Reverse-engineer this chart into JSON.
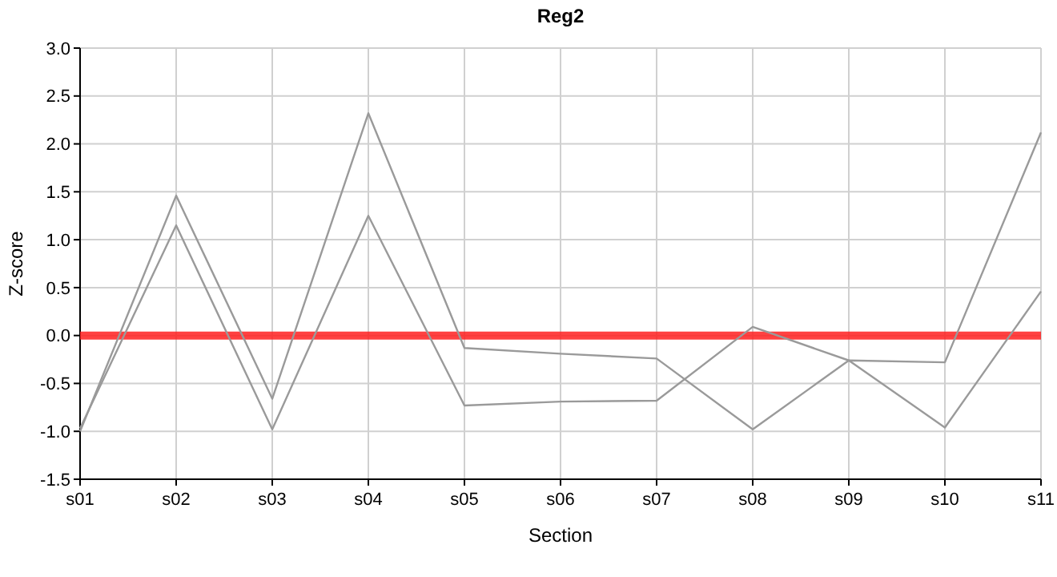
{
  "chart_data": {
    "type": "line",
    "title": "Reg2",
    "xlabel": "Section",
    "ylabel": "Z-score",
    "categories": [
      "s01",
      "s02",
      "s03",
      "s04",
      "s05",
      "s06",
      "s07",
      "s08",
      "s09",
      "s10",
      "s11"
    ],
    "series": [
      {
        "color": "#9a9a9a",
        "values": [
          -1.0,
          1.46,
          -0.66,
          2.32,
          -0.13,
          -0.19,
          -0.24,
          -0.98,
          -0.26,
          -0.28,
          2.12
        ]
      },
      {
        "color": "#9a9a9a",
        "values": [
          -0.97,
          1.15,
          -0.98,
          1.25,
          -0.73,
          -0.69,
          -0.68,
          0.09,
          -0.26,
          -0.96,
          0.46
        ]
      }
    ],
    "ylim": [
      -1.5,
      3.0
    ],
    "yticks": [
      {
        "value": -1.5,
        "label": "-1.5"
      },
      {
        "value": -1,
        "label": "-1.0"
      },
      {
        "value": -0.5,
        "label": "-0.5"
      },
      {
        "value": 0,
        "label": "0.0"
      },
      {
        "value": 0.5,
        "label": "0.5"
      },
      {
        "value": 1,
        "label": "1.0"
      },
      {
        "value": 1.5,
        "label": "1.5"
      },
      {
        "value": 2,
        "label": "2.0"
      },
      {
        "value": 2.5,
        "label": "2.5"
      },
      {
        "value": 3,
        "label": "3.0"
      }
    ],
    "grid": true,
    "marker": "none",
    "line_style": "solid",
    "ref_lines": [
      {
        "axis": "y",
        "value": 0,
        "color": "#ff2020"
      }
    ]
  }
}
